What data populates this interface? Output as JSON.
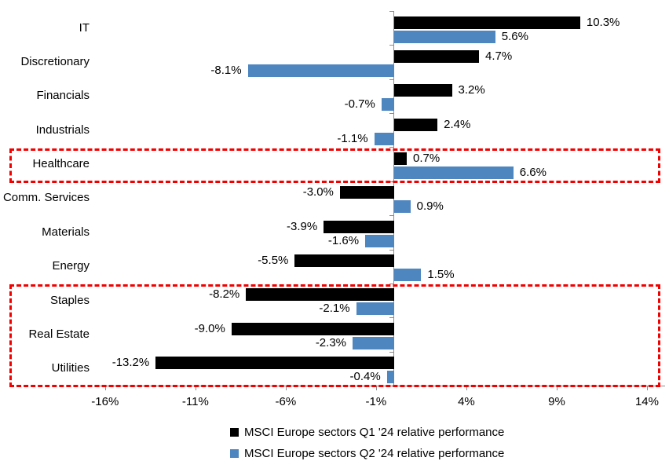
{
  "chart_data": {
    "type": "bar",
    "orientation": "horizontal",
    "title": "",
    "categories": [
      "IT",
      "Discretionary",
      "Financials",
      "Industrials",
      "Healthcare",
      "Comm. Services",
      "Materials",
      "Energy",
      "Staples",
      "Real Estate",
      "Utilities"
    ],
    "series": [
      {
        "name": "MSCI Europe sectors Q1 '24 relative performance",
        "color": "#000000",
        "values": [
          10.3,
          4.7,
          3.2,
          2.4,
          0.7,
          -3.0,
          -3.9,
          -5.5,
          -8.2,
          -9.0,
          -13.2
        ],
        "labels": [
          "10.3%",
          "4.7%",
          "3.2%",
          "2.4%",
          "0.7%",
          "-3.0%",
          "-3.9%",
          "-5.5%",
          "-8.2%",
          "-9.0%",
          "-13.2%"
        ]
      },
      {
        "name": "MSCI Europe sectors Q2 '24 relative performance",
        "color": "#4e86c0",
        "values": [
          5.6,
          -8.1,
          -0.7,
          -1.1,
          6.6,
          0.9,
          -1.6,
          1.5,
          -2.1,
          -2.3,
          -0.4
        ],
        "labels": [
          "5.6%",
          "-8.1%",
          "-0.7%",
          "-1.1%",
          "6.6%",
          "0.9%",
          "-1.6%",
          "1.5%",
          "-2.1%",
          "-2.3%",
          "-0.4%"
        ]
      }
    ],
    "x_axis": {
      "tick_labels": [
        "-16%",
        "-11%",
        "-6%",
        "-1%",
        "4%",
        "9%",
        "14%"
      ],
      "tick_values": [
        -16,
        -11,
        -6,
        -1,
        4,
        9,
        14
      ],
      "xlim": [
        -16.6,
        15.0
      ],
      "unit": "%"
    },
    "grid": false,
    "legend_position": "bottom",
    "highlight_color": "#f20000",
    "highlights": [
      {
        "row_start": 4,
        "row_end": 4
      },
      {
        "row_start": 8,
        "row_end": 10
      }
    ]
  }
}
